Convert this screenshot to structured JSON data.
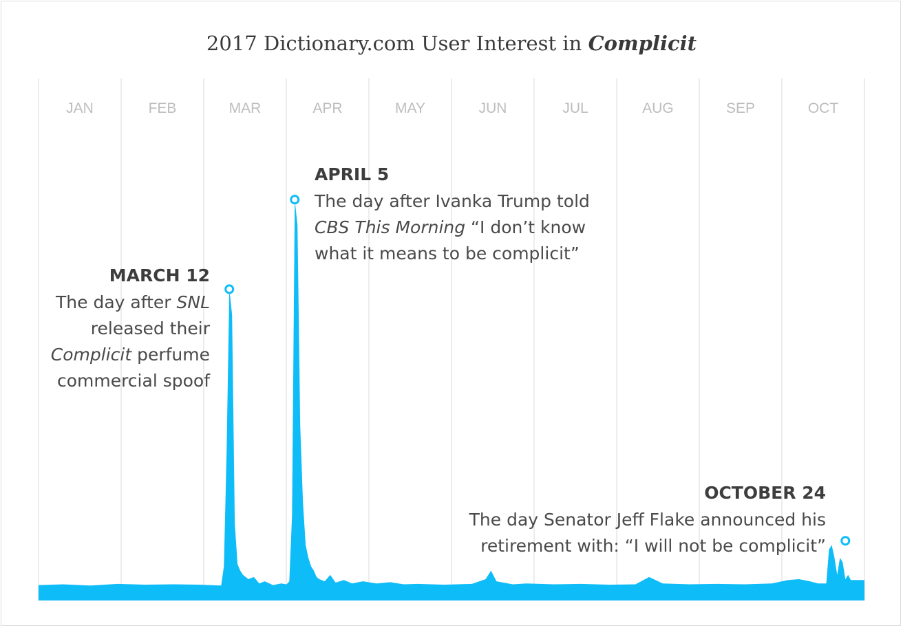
{
  "title": {
    "prefix": "2017 Dictionary.com User Interest in ",
    "word": "Complicit"
  },
  "colors": {
    "series": "#0ebcf8",
    "grid": "#e6e6e6",
    "month_label": "#bdbdbd",
    "text": "#4a4a4a"
  },
  "chart_data": {
    "type": "area",
    "title": "2017 Dictionary.com User Interest in Complicit",
    "xlabel": "",
    "ylabel": "",
    "x_range": [
      1,
      304
    ],
    "ylim": [
      0,
      100
    ],
    "grid": true,
    "months": [
      "JAN",
      "FEB",
      "MAR",
      "APR",
      "MAY",
      "JUN",
      "JUL",
      "AUG",
      "SEP",
      "OCT"
    ],
    "series": [
      {
        "name": "User interest in Complicit (relative)",
        "points": [
          [
            1,
            3.6
          ],
          [
            10,
            3.8
          ],
          [
            20,
            3.5
          ],
          [
            30,
            3.9
          ],
          [
            40,
            3.7
          ],
          [
            50,
            3.8
          ],
          [
            60,
            3.7
          ],
          [
            68,
            3.5
          ],
          [
            69,
            8.0
          ],
          [
            70,
            35.0
          ],
          [
            71,
            73.0
          ],
          [
            72,
            67.0
          ],
          [
            73,
            18.0
          ],
          [
            74,
            8.5
          ],
          [
            75,
            7.0
          ],
          [
            76,
            6.0
          ],
          [
            78,
            5.0
          ],
          [
            80,
            5.5
          ],
          [
            82,
            4.0
          ],
          [
            84,
            4.5
          ],
          [
            87,
            3.6
          ],
          [
            90,
            4.0
          ],
          [
            92,
            3.8
          ],
          [
            93,
            4.5
          ],
          [
            94,
            20.0
          ],
          [
            95,
            94.0
          ],
          [
            96,
            88.0
          ],
          [
            97,
            41.0
          ],
          [
            98,
            23.0
          ],
          [
            99,
            13.0
          ],
          [
            100,
            10.0
          ],
          [
            101,
            8.0
          ],
          [
            102,
            7.0
          ],
          [
            103,
            5.5
          ],
          [
            104,
            5.0
          ],
          [
            106,
            4.5
          ],
          [
            108,
            6.0
          ],
          [
            110,
            4.2
          ],
          [
            113,
            4.8
          ],
          [
            116,
            4.0
          ],
          [
            120,
            4.5
          ],
          [
            125,
            4.0
          ],
          [
            130,
            4.3
          ],
          [
            135,
            3.8
          ],
          [
            140,
            3.9
          ],
          [
            150,
            3.7
          ],
          [
            160,
            3.9
          ],
          [
            165,
            5.0
          ],
          [
            167,
            7.0
          ],
          [
            169,
            4.5
          ],
          [
            175,
            3.8
          ],
          [
            180,
            4.0
          ],
          [
            190,
            3.8
          ],
          [
            200,
            3.9
          ],
          [
            210,
            3.7
          ],
          [
            220,
            3.8
          ],
          [
            225,
            5.5
          ],
          [
            230,
            4.0
          ],
          [
            240,
            3.8
          ],
          [
            250,
            3.9
          ],
          [
            260,
            3.8
          ],
          [
            270,
            4.0
          ],
          [
            276,
            4.8
          ],
          [
            280,
            5.0
          ],
          [
            284,
            4.5
          ],
          [
            287,
            4.0
          ],
          [
            290,
            4.0
          ],
          [
            291,
            12.0
          ],
          [
            292,
            13.0
          ],
          [
            293,
            10.0
          ],
          [
            294,
            6.0
          ],
          [
            295,
            10.0
          ],
          [
            296,
            9.0
          ],
          [
            297,
            5.0
          ],
          [
            298,
            6.0
          ],
          [
            299,
            4.8
          ],
          [
            304,
            4.8
          ]
        ]
      }
    ],
    "annotations": [
      {
        "label": "MARCH 12",
        "x": 71,
        "y": 73,
        "text": "The day after SNL released their Complicit perfume commercial spoof"
      },
      {
        "label": "APRIL 5",
        "x": 95,
        "y": 94,
        "text": "The day after Ivanka Trump told CBS This Morning “I don’t know what it means to be complicit”"
      },
      {
        "label": "OCTOBER 24",
        "x": 297,
        "y": 14,
        "text": "The day Senator Jeff Flake announced his retirement with: “I will not be complicit”"
      }
    ]
  },
  "annotations": {
    "march": {
      "date": "MARCH 12",
      "l1a": "The day after ",
      "l1b": "SNL",
      "l2": "released their",
      "l3a": "Complicit",
      "l3b": " perfume",
      "l4": "commercial spoof"
    },
    "april": {
      "date": "APRIL 5",
      "l1": "The day after Ivanka Trump told",
      "l2a": "CBS This Morning",
      "l2b": " “I don’t know",
      "l3": "what it means to be complicit”"
    },
    "october": {
      "date": "OCTOBER 24",
      "l1": "The day Senator Jeff Flake announced his",
      "l2": "retirement with: “I will not be complicit”"
    }
  }
}
